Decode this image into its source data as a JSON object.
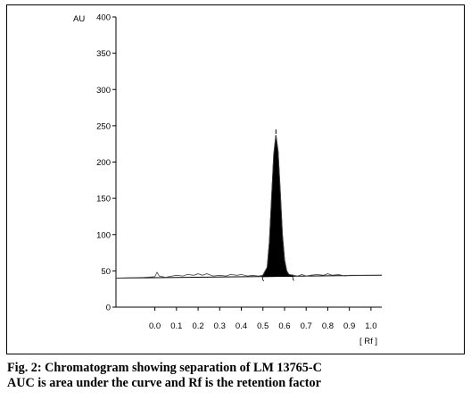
{
  "chart_data": {
    "type": "line",
    "title": "",
    "xlabel": "[ Rf ]",
    "ylabel": "AU",
    "xlim": [
      -0.18,
      1.05
    ],
    "ylim": [
      0,
      400
    ],
    "x_ticks": [
      0.0,
      0.1,
      0.2,
      0.3,
      0.4,
      0.5,
      0.6,
      0.7,
      0.8,
      0.9,
      1.0
    ],
    "x_tick_labels": [
      "0.0",
      "0.1",
      "0.2",
      "0.3",
      "0.4",
      "0.5",
      "0.6",
      "0.7",
      "0.8",
      "0.9",
      "1.0"
    ],
    "y_ticks": [
      0,
      50,
      100,
      150,
      200,
      250,
      300,
      350,
      400
    ],
    "y_tick_labels": [
      "0",
      "50",
      "100",
      "150",
      "200",
      "250",
      "300",
      "350",
      "400"
    ],
    "grid": false,
    "series": [
      {
        "x": [
          -0.18,
          -0.05,
          0.0,
          0.01,
          0.02,
          0.05,
          0.08,
          0.1,
          0.13,
          0.15,
          0.18,
          0.2,
          0.22,
          0.24,
          0.27,
          0.3,
          0.33,
          0.35,
          0.38,
          0.4,
          0.43,
          0.45,
          0.48,
          0.5,
          0.52,
          0.53,
          0.54,
          0.55,
          0.56,
          0.57,
          0.58,
          0.59,
          0.6,
          0.61,
          0.62,
          0.64,
          0.66,
          0.68,
          0.7,
          0.72,
          0.75,
          0.78,
          0.8,
          0.82,
          0.85,
          0.88,
          0.9,
          0.95,
          1.0,
          1.05
        ],
        "y": [
          40,
          41,
          42,
          48,
          43,
          41,
          43,
          44,
          43,
          45,
          44,
          46,
          44,
          46,
          43,
          44,
          43,
          45,
          44,
          45,
          43,
          44,
          43,
          44,
          55,
          90,
          150,
          210,
          237,
          215,
          160,
          100,
          65,
          50,
          45,
          44,
          43,
          45,
          43,
          44,
          45,
          44,
          46,
          44,
          45,
          43,
          44,
          44,
          44,
          44
        ]
      }
    ],
    "baseline": {
      "x": [
        -0.18,
        1.05
      ],
      "y": [
        40,
        44
      ]
    },
    "peak_fill": {
      "x_start": 0.5,
      "x_end": 0.64
    },
    "peak_marker": {
      "x": 0.56,
      "y": 245
    },
    "peak_bracket_ticks": [
      0.5,
      0.64
    ]
  },
  "caption": {
    "line1": "Fig. 2: Chromatogram showing separation of LM 13765-C",
    "line2": "AUC is area under the curve and Rf is the retention factor"
  }
}
